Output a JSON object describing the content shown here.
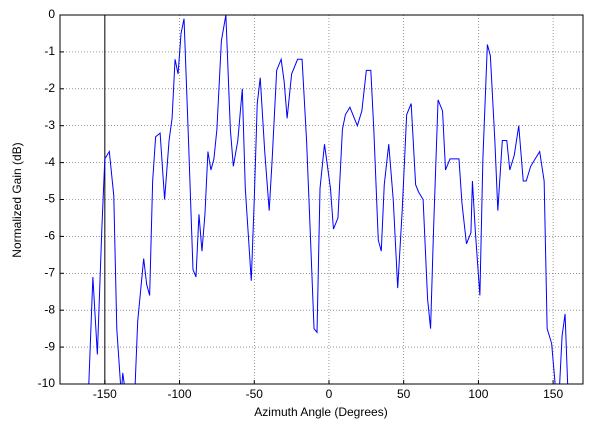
{
  "chart_data": {
    "type": "line",
    "x_label": "Azimuth Angle (Degrees)",
    "y_label": "Normalized Gain (dB)",
    "xlim": [
      -180,
      170
    ],
    "ylim": [
      -10,
      0
    ],
    "xticks": [
      -150,
      -100,
      -50,
      0,
      50,
      100,
      150
    ],
    "yticks": [
      -10,
      -9,
      -8,
      -7,
      -6,
      -5,
      -4,
      -3,
      -2,
      -1,
      0
    ],
    "grid": true,
    "vlines": [
      {
        "x": -150,
        "color": "#000000"
      }
    ],
    "x": [
      -161,
      -158,
      -155,
      -152,
      -150,
      -147,
      -144,
      -142,
      -139,
      -138,
      -136,
      -130,
      -128,
      -124,
      -122,
      -120,
      -118,
      -116,
      -113,
      -110,
      -107,
      -105,
      -103,
      -101,
      -99,
      -97,
      -94,
      -91,
      -89,
      -87,
      -85,
      -83,
      -81,
      -79,
      -77,
      -75,
      -72,
      -69,
      -66,
      -64,
      -61,
      -58,
      -56,
      -52,
      -50,
      -48,
      -46,
      -43,
      -40,
      -38,
      -35,
      -32,
      -30,
      -28,
      -25,
      -21,
      -18,
      -15,
      -13,
      -10,
      -8,
      -6,
      -3,
      1,
      3,
      6,
      9,
      11,
      14,
      17,
      19,
      22,
      25,
      28,
      30,
      33,
      35,
      37,
      40,
      43,
      46,
      49,
      52,
      55,
      58,
      60,
      63,
      66,
      68,
      70,
      73,
      76,
      78,
      81,
      84,
      87,
      89,
      92,
      95,
      96,
      98,
      101,
      103,
      106,
      108,
      111,
      113,
      116,
      119,
      121,
      124,
      127,
      130,
      132,
      135,
      138,
      141,
      144,
      146,
      149,
      152,
      154,
      156,
      158,
      160
    ],
    "series": [
      {
        "name": "Gain",
        "color": "#0000ff",
        "values": [
          -10.3,
          -7.1,
          -9.2,
          -5.8,
          -3.9,
          -3.7,
          -4.9,
          -8.5,
          -10.3,
          -9.7,
          -10.3,
          -10.3,
          -8.3,
          -6.6,
          -7.3,
          -7.6,
          -4.5,
          -3.3,
          -3.2,
          -5.0,
          -3.4,
          -2.8,
          -1.2,
          -1.6,
          -0.5,
          -0.1,
          -3.4,
          -6.9,
          -7.1,
          -5.4,
          -6.4,
          -5.4,
          -3.7,
          -4.2,
          -3.9,
          -3.1,
          -0.7,
          0,
          -3.1,
          -4.1,
          -3.4,
          -2.0,
          -4.7,
          -7.2,
          -5.0,
          -2.4,
          -1.7,
          -3.7,
          -5.3,
          -3.9,
          -1.5,
          -1.2,
          -1.8,
          -2.8,
          -1.6,
          -1.2,
          -1.2,
          -3.4,
          -5.4,
          -8.5,
          -8.6,
          -4.7,
          -3.5,
          -4.7,
          -5.8,
          -5.5,
          -3.1,
          -2.7,
          -2.5,
          -2.8,
          -3.0,
          -2.6,
          -1.5,
          -1.5,
          -3.1,
          -6.1,
          -6.4,
          -4.6,
          -3.5,
          -5.0,
          -7.4,
          -5.3,
          -2.7,
          -2.4,
          -4.6,
          -4.8,
          -5.0,
          -7.7,
          -8.5,
          -5.8,
          -2.3,
          -2.6,
          -4.2,
          -3.9,
          -3.9,
          -3.9,
          -5.1,
          -6.2,
          -5.9,
          -4.5,
          -5.9,
          -7.6,
          -3.9,
          -0.8,
          -1.1,
          -3.4,
          -5.3,
          -3.4,
          -3.4,
          -4.2,
          -3.8,
          -3.0,
          -4.5,
          -4.5,
          -4.1,
          -3.9,
          -3.7,
          -4.5,
          -8.5,
          -8.9,
          -10.3,
          -10.3,
          -8.7,
          -8.1,
          -10.3
        ]
      }
    ]
  }
}
